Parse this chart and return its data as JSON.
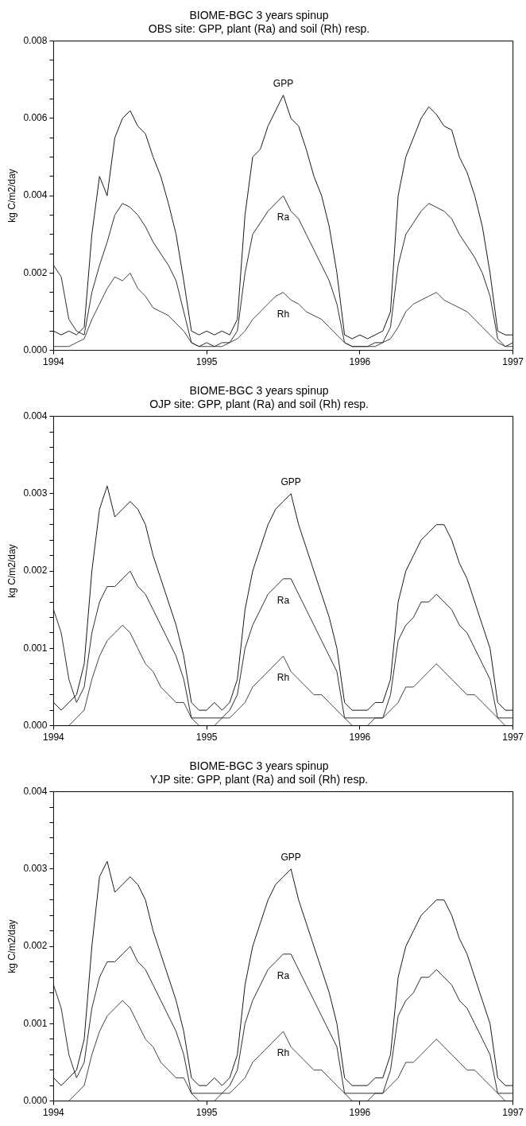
{
  "chart_data": [
    {
      "type": "line",
      "title": "BIOME-BGC 3 years spinup",
      "subtitle": "OBS site: GPP, plant (Ra) and soil (Rh) resp.",
      "ylabel": "kg C/m2/day",
      "x": [
        1994.0,
        1994.05,
        1994.1,
        1994.15,
        1994.2,
        1994.25,
        1994.3,
        1994.35,
        1994.4,
        1994.45,
        1994.5,
        1994.55,
        1994.6,
        1994.65,
        1994.7,
        1994.75,
        1994.8,
        1994.85,
        1994.9,
        1994.95,
        1995.0,
        1995.05,
        1995.1,
        1995.15,
        1995.2,
        1995.25,
        1995.3,
        1995.35,
        1995.4,
        1995.45,
        1995.5,
        1995.55,
        1995.6,
        1995.65,
        1995.7,
        1995.75,
        1995.8,
        1995.85,
        1995.9,
        1995.95,
        1996.0,
        1996.05,
        1996.1,
        1996.15,
        1996.2,
        1996.25,
        1996.3,
        1996.35,
        1996.4,
        1996.45,
        1996.5,
        1996.55,
        1996.6,
        1996.65,
        1996.7,
        1996.75,
        1996.8,
        1996.85,
        1996.9,
        1996.95,
        1997.0
      ],
      "xlim": [
        1994,
        1997
      ],
      "xticks": [
        1994,
        1995,
        1996,
        1997
      ],
      "ylim": [
        0,
        0.008
      ],
      "yticks": [
        {
          "value": 0,
          "label": "0.000"
        },
        {
          "value": 0.0005,
          "label": null
        },
        {
          "value": 0.001,
          "label": null
        },
        {
          "value": 0.0015,
          "label": null
        },
        0.002,
        {
          "value": 0.0025,
          "label": null
        },
        {
          "value": 0.003,
          "label": null
        },
        {
          "value": 0.0035,
          "label": null
        },
        0.004,
        {
          "value": 0.0045,
          "label": null
        },
        {
          "value": 0.005,
          "label": null
        },
        {
          "value": 0.0055,
          "label": null
        },
        0.006,
        {
          "value": 0.0065,
          "label": null
        },
        {
          "value": 0.007,
          "label": null
        },
        {
          "value": 0.0075,
          "label": null
        },
        0.008
      ],
      "series": [
        {
          "name": "GPP",
          "color": "#1a1a1a",
          "values": [
            0.0005,
            0.0004,
            0.0005,
            0.0004,
            0.0006,
            0.003,
            0.0045,
            0.004,
            0.0055,
            0.006,
            0.0062,
            0.0058,
            0.0056,
            0.005,
            0.0045,
            0.0038,
            0.003,
            0.0018,
            0.0005,
            0.0004,
            0.0005,
            0.0004,
            0.0005,
            0.0004,
            0.0008,
            0.0035,
            0.005,
            0.0052,
            0.0058,
            0.0062,
            0.0066,
            0.006,
            0.0058,
            0.0052,
            0.0045,
            0.004,
            0.0032,
            0.002,
            0.0004,
            0.0003,
            0.0004,
            0.0003,
            0.0004,
            0.0005,
            0.001,
            0.004,
            0.005,
            0.0055,
            0.006,
            0.0063,
            0.0061,
            0.0058,
            0.0057,
            0.005,
            0.0046,
            0.004,
            0.0032,
            0.002,
            0.0005,
            0.0004,
            0.0004
          ]
        },
        {
          "name": "Ra",
          "color": "#2e2e2e",
          "values": [
            0.0022,
            0.0019,
            0.0008,
            0.0005,
            0.0004,
            0.0015,
            0.0022,
            0.0028,
            0.0035,
            0.0038,
            0.0037,
            0.0035,
            0.0032,
            0.0028,
            0.0025,
            0.0022,
            0.0018,
            0.001,
            0.0002,
            0.0001,
            0.0002,
            0.0001,
            0.0002,
            0.0002,
            0.0005,
            0.002,
            0.003,
            0.0033,
            0.0036,
            0.0038,
            0.004,
            0.0036,
            0.0034,
            0.003,
            0.0026,
            0.0022,
            0.0018,
            0.0012,
            0.0002,
            0.0001,
            0.0001,
            0.0001,
            0.0002,
            0.0002,
            0.0006,
            0.0022,
            0.003,
            0.0033,
            0.0036,
            0.0038,
            0.0037,
            0.0036,
            0.0034,
            0.003,
            0.0027,
            0.0024,
            0.002,
            0.0014,
            0.0003,
            0.0001,
            0.0002
          ]
        },
        {
          "name": "Rh",
          "color": "#444444",
          "values": [
            0.0001,
            0.0001,
            0.0001,
            0.0002,
            0.0003,
            0.0008,
            0.0012,
            0.0016,
            0.0019,
            0.0018,
            0.002,
            0.0016,
            0.0014,
            0.0011,
            0.001,
            0.0009,
            0.0007,
            0.0005,
            0.0002,
            0.0001,
            0.0001,
            0.0001,
            0.0001,
            0.0002,
            0.0003,
            0.0005,
            0.0008,
            0.001,
            0.0012,
            0.0014,
            0.0015,
            0.0013,
            0.0012,
            0.001,
            0.0009,
            0.0008,
            0.0006,
            0.0004,
            0.0002,
            0.0001,
            0.0001,
            0.0001,
            0.0001,
            0.0002,
            0.0003,
            0.0006,
            0.001,
            0.0012,
            0.0013,
            0.0014,
            0.0015,
            0.0013,
            0.0012,
            0.0011,
            0.001,
            0.0008,
            0.0006,
            0.0004,
            0.0002,
            0.0001,
            0.0001
          ]
        }
      ]
    },
    {
      "type": "line",
      "title": "BIOME-BGC 3 years spinup",
      "subtitle": "OJP site: GPP, plant (Ra) and soil (Rh) resp.",
      "ylabel": "kg C/m2/day",
      "x": [
        1994.0,
        1994.05,
        1994.1,
        1994.15,
        1994.2,
        1994.25,
        1994.3,
        1994.35,
        1994.4,
        1994.45,
        1994.5,
        1994.55,
        1994.6,
        1994.65,
        1994.7,
        1994.75,
        1994.8,
        1994.85,
        1994.9,
        1994.95,
        1995.0,
        1995.05,
        1995.1,
        1995.15,
        1995.2,
        1995.25,
        1995.3,
        1995.35,
        1995.4,
        1995.45,
        1995.5,
        1995.55,
        1995.6,
        1995.65,
        1995.7,
        1995.75,
        1995.8,
        1995.85,
        1995.9,
        1995.95,
        1996.0,
        1996.05,
        1996.1,
        1996.15,
        1996.2,
        1996.25,
        1996.3,
        1996.35,
        1996.4,
        1996.45,
        1996.5,
        1996.55,
        1996.6,
        1996.65,
        1996.7,
        1996.75,
        1996.8,
        1996.85,
        1996.9,
        1996.95,
        1997.0
      ],
      "xlim": [
        1994,
        1997
      ],
      "xticks": [
        1994,
        1995,
        1996,
        1997
      ],
      "ylim": [
        0,
        0.004
      ],
      "yticks": [
        {
          "value": 0,
          "label": "0.000"
        },
        {
          "value": 0.0002,
          "label": null
        },
        {
          "value": 0.0004,
          "label": null
        },
        {
          "value": 0.0006,
          "label": null
        },
        {
          "value": 0.0008,
          "label": null
        },
        0.001,
        {
          "value": 0.0012,
          "label": null
        },
        {
          "value": 0.0014,
          "label": null
        },
        {
          "value": 0.0016,
          "label": null
        },
        {
          "value": 0.0018,
          "label": null
        },
        0.002,
        {
          "value": 0.0022,
          "label": null
        },
        {
          "value": 0.0024,
          "label": null
        },
        {
          "value": 0.0026,
          "label": null
        },
        {
          "value": 0.0028,
          "label": null
        },
        0.003,
        {
          "value": 0.0032,
          "label": null
        },
        {
          "value": 0.0034,
          "label": null
        },
        {
          "value": 0.0036,
          "label": null
        },
        {
          "value": 0.0038,
          "label": null
        },
        0.004
      ],
      "series": [
        {
          "name": "GPP",
          "color": "#1a1a1a",
          "values": [
            0.0003,
            0.0002,
            0.0003,
            0.0004,
            0.0008,
            0.002,
            0.0028,
            0.0031,
            0.0027,
            0.0028,
            0.0029,
            0.0028,
            0.0026,
            0.0022,
            0.0019,
            0.0016,
            0.0013,
            0.0009,
            0.0003,
            0.0002,
            0.0002,
            0.0003,
            0.0002,
            0.0003,
            0.0006,
            0.0015,
            0.002,
            0.0023,
            0.0026,
            0.0028,
            0.0029,
            0.003,
            0.0026,
            0.0023,
            0.002,
            0.0017,
            0.0014,
            0.001,
            0.0003,
            0.0002,
            0.0002,
            0.0002,
            0.0003,
            0.0003,
            0.0006,
            0.0016,
            0.002,
            0.0022,
            0.0024,
            0.0025,
            0.0026,
            0.0026,
            0.0024,
            0.0021,
            0.0019,
            0.0016,
            0.0013,
            0.001,
            0.0003,
            0.0002,
            0.0002
          ]
        },
        {
          "name": "Ra",
          "color": "#2e2e2e",
          "values": [
            0.0015,
            0.0012,
            0.0006,
            0.0003,
            0.0005,
            0.0012,
            0.0016,
            0.0018,
            0.0018,
            0.0019,
            0.002,
            0.0018,
            0.0017,
            0.0015,
            0.0013,
            0.0011,
            0.0009,
            0.0006,
            0.0001,
            0.0001,
            0.0001,
            0.0001,
            0.0001,
            0.0002,
            0.0004,
            0.001,
            0.0013,
            0.0015,
            0.0017,
            0.0018,
            0.0019,
            0.0019,
            0.0017,
            0.0015,
            0.0013,
            0.0011,
            0.0009,
            0.0007,
            0.0001,
            0.0001,
            0.0001,
            0.0001,
            0.0001,
            0.0001,
            0.0004,
            0.0011,
            0.0013,
            0.0014,
            0.0016,
            0.0016,
            0.0017,
            0.0016,
            0.0015,
            0.0013,
            0.0012,
            0.001,
            0.0008,
            0.0006,
            0.0001,
            0.0001,
            0.0001
          ]
        },
        {
          "name": "Rh",
          "color": "#444444",
          "values": [
            0,
            0,
            0,
            0.0001,
            0.0002,
            0.0006,
            0.0009,
            0.0011,
            0.0012,
            0.0013,
            0.0012,
            0.001,
            0.0008,
            0.0007,
            0.0005,
            0.0004,
            0.0003,
            0.0003,
            0.0001,
            0,
            0,
            0,
            0.0001,
            0.0001,
            0.0002,
            0.0003,
            0.0005,
            0.0006,
            0.0007,
            0.0008,
            0.0009,
            0.0007,
            0.0006,
            0.0005,
            0.0004,
            0.0004,
            0.0003,
            0.0002,
            0.0001,
            0,
            0,
            0,
            0.0001,
            0.0001,
            0.0002,
            0.0003,
            0.0005,
            0.0005,
            0.0006,
            0.0007,
            0.0008,
            0.0007,
            0.0006,
            0.0005,
            0.0004,
            0.0004,
            0.0003,
            0.0002,
            0.0001,
            0,
            0
          ]
        }
      ]
    },
    {
      "type": "line",
      "title": "BIOME-BGC 3 years spinup",
      "subtitle": "YJP site: GPP, plant (Ra) and soil (Rh) resp.",
      "ylabel": "kg C/m2/day",
      "x": [
        1994.0,
        1994.05,
        1994.1,
        1994.15,
        1994.2,
        1994.25,
        1994.3,
        1994.35,
        1994.4,
        1994.45,
        1994.5,
        1994.55,
        1994.6,
        1994.65,
        1994.7,
        1994.75,
        1994.8,
        1994.85,
        1994.9,
        1994.95,
        1995.0,
        1995.05,
        1995.1,
        1995.15,
        1995.2,
        1995.25,
        1995.3,
        1995.35,
        1995.4,
        1995.45,
        1995.5,
        1995.55,
        1995.6,
        1995.65,
        1995.7,
        1995.75,
        1995.8,
        1995.85,
        1995.9,
        1995.95,
        1996.0,
        1996.05,
        1996.1,
        1996.15,
        1996.2,
        1996.25,
        1996.3,
        1996.35,
        1996.4,
        1996.45,
        1996.5,
        1996.55,
        1996.6,
        1996.65,
        1996.7,
        1996.75,
        1996.8,
        1996.85,
        1996.9,
        1996.95,
        1997.0
      ],
      "xlim": [
        1994,
        1997
      ],
      "xticks": [
        1994,
        1995,
        1996,
        1997
      ],
      "ylim": [
        0,
        0.004
      ],
      "yticks": [
        {
          "value": 0,
          "label": "0.000"
        },
        {
          "value": 0.0002,
          "label": null
        },
        {
          "value": 0.0004,
          "label": null
        },
        {
          "value": 0.0006,
          "label": null
        },
        {
          "value": 0.0008,
          "label": null
        },
        0.001,
        {
          "value": 0.0012,
          "label": null
        },
        {
          "value": 0.0014,
          "label": null
        },
        {
          "value": 0.0016,
          "label": null
        },
        {
          "value": 0.0018,
          "label": null
        },
        0.002,
        {
          "value": 0.0022,
          "label": null
        },
        {
          "value": 0.0024,
          "label": null
        },
        {
          "value": 0.0026,
          "label": null
        },
        {
          "value": 0.0028,
          "label": null
        },
        0.003,
        {
          "value": 0.0032,
          "label": null
        },
        {
          "value": 0.0034,
          "label": null
        },
        {
          "value": 0.0036,
          "label": null
        },
        {
          "value": 0.0038,
          "label": null
        },
        0.004
      ],
      "series": [
        {
          "name": "GPP",
          "color": "#1a1a1a",
          "values": [
            0.0003,
            0.0002,
            0.0003,
            0.0004,
            0.0008,
            0.002,
            0.0029,
            0.0031,
            0.0027,
            0.0028,
            0.0029,
            0.0028,
            0.0026,
            0.0022,
            0.0019,
            0.0016,
            0.0013,
            0.0009,
            0.0003,
            0.0002,
            0.0002,
            0.0003,
            0.0002,
            0.0003,
            0.0006,
            0.0015,
            0.002,
            0.0023,
            0.0026,
            0.0028,
            0.0029,
            0.003,
            0.0026,
            0.0023,
            0.002,
            0.0017,
            0.0014,
            0.001,
            0.0003,
            0.0002,
            0.0002,
            0.0002,
            0.0003,
            0.0003,
            0.0006,
            0.0016,
            0.002,
            0.0022,
            0.0024,
            0.0025,
            0.0026,
            0.0026,
            0.0024,
            0.0021,
            0.0019,
            0.0016,
            0.0013,
            0.001,
            0.0003,
            0.0002,
            0.0002
          ]
        },
        {
          "name": "Ra",
          "color": "#2e2e2e",
          "values": [
            0.0015,
            0.0012,
            0.0006,
            0.0003,
            0.0005,
            0.0012,
            0.0016,
            0.0018,
            0.0018,
            0.0019,
            0.002,
            0.0018,
            0.0017,
            0.0015,
            0.0013,
            0.0011,
            0.0009,
            0.0006,
            0.0001,
            0.0001,
            0.0001,
            0.0001,
            0.0001,
            0.0002,
            0.0004,
            0.001,
            0.0013,
            0.0015,
            0.0017,
            0.0018,
            0.0019,
            0.0019,
            0.0017,
            0.0015,
            0.0013,
            0.0011,
            0.0009,
            0.0007,
            0.0001,
            0.0001,
            0.0001,
            0.0001,
            0.0001,
            0.0001,
            0.0004,
            0.0011,
            0.0013,
            0.0014,
            0.0016,
            0.0016,
            0.0017,
            0.0016,
            0.0015,
            0.0013,
            0.0012,
            0.001,
            0.0008,
            0.0006,
            0.0001,
            0.0001,
            0.0001
          ]
        },
        {
          "name": "Rh",
          "color": "#444444",
          "values": [
            0,
            0,
            0,
            0.0001,
            0.0002,
            0.0006,
            0.0009,
            0.0011,
            0.0012,
            0.0013,
            0.0012,
            0.001,
            0.0008,
            0.0007,
            0.0005,
            0.0004,
            0.0003,
            0.0003,
            0.0001,
            0,
            0,
            0,
            0.0001,
            0.0001,
            0.0002,
            0.0003,
            0.0005,
            0.0006,
            0.0007,
            0.0008,
            0.0009,
            0.0007,
            0.0006,
            0.0005,
            0.0004,
            0.0004,
            0.0003,
            0.0002,
            0.0001,
            0,
            0,
            0,
            0.0001,
            0.0001,
            0.0002,
            0.0003,
            0.0005,
            0.0005,
            0.0006,
            0.0007,
            0.0008,
            0.0007,
            0.0006,
            0.0005,
            0.0004,
            0.0004,
            0.0003,
            0.0002,
            0.0001,
            0,
            0
          ]
        }
      ]
    }
  ]
}
